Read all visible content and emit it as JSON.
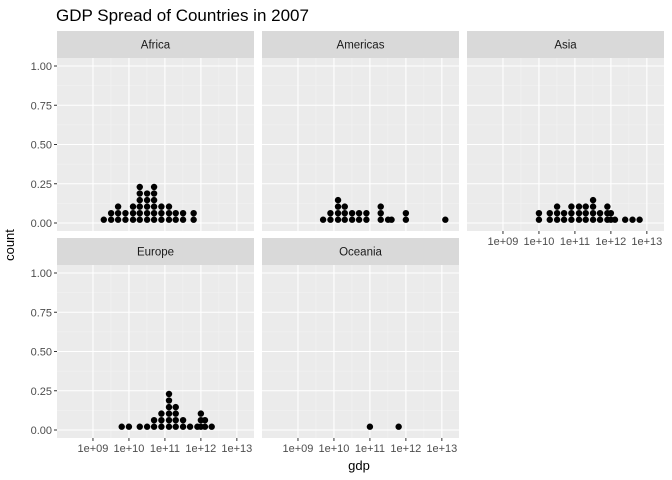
{
  "chart_data": {
    "type": "dotplot",
    "title": "GDP Spread of Countries in 2007",
    "xlabel": "gdp",
    "ylabel": "count",
    "x_scale": "log10",
    "xlim": [
      100000000,
      30000000000000
    ],
    "ylim": [
      0,
      1.0
    ],
    "y_ticks": [
      "0.00",
      "0.25",
      "0.50",
      "0.75",
      "1.00"
    ],
    "y_tick_values": [
      0,
      0.25,
      0.5,
      0.75,
      1.0
    ],
    "x_ticks": [
      "1e+09",
      "1e+10",
      "1e+11",
      "1e+12",
      "1e+13"
    ],
    "x_tick_values": [
      1000000000,
      10000000000,
      100000000000,
      1000000000000,
      10000000000000
    ],
    "binwidth_log10": 0.2,
    "grid": true,
    "dot_color": "#000000",
    "panel_background": "#ebebeb",
    "strip_background": "#d9d9d9",
    "facets": [
      {
        "name": "Africa",
        "bins": [
          {
            "x": 2000000000,
            "count": 1
          },
          {
            "x": 3200000000,
            "count": 2
          },
          {
            "x": 5000000000,
            "count": 3
          },
          {
            "x": 8000000000,
            "count": 2
          },
          {
            "x": 13000000000,
            "count": 3
          },
          {
            "x": 20000000000,
            "count": 6
          },
          {
            "x": 32000000000,
            "count": 5
          },
          {
            "x": 50000000000,
            "count": 6
          },
          {
            "x": 80000000000,
            "count": 3
          },
          {
            "x": 130000000000,
            "count": 3
          },
          {
            "x": 200000000000,
            "count": 2
          },
          {
            "x": 320000000000,
            "count": 2
          },
          {
            "x": 630000000000,
            "count": 2
          }
        ]
      },
      {
        "name": "Americas",
        "bins": [
          {
            "x": 5000000000,
            "count": 1
          },
          {
            "x": 8000000000,
            "count": 2
          },
          {
            "x": 13000000000,
            "count": 4
          },
          {
            "x": 20000000000,
            "count": 3
          },
          {
            "x": 32000000000,
            "count": 2
          },
          {
            "x": 50000000000,
            "count": 2
          },
          {
            "x": 80000000000,
            "count": 2
          },
          {
            "x": 200000000000,
            "count": 3
          },
          {
            "x": 320000000000,
            "count": 1
          },
          {
            "x": 400000000000,
            "count": 1
          },
          {
            "x": 1000000000000,
            "count": 2
          },
          {
            "x": 12500000000000,
            "count": 1
          }
        ]
      },
      {
        "name": "Asia",
        "bins": [
          {
            "x": 10000000000,
            "count": 2
          },
          {
            "x": 20000000000,
            "count": 2
          },
          {
            "x": 32000000000,
            "count": 3
          },
          {
            "x": 50000000000,
            "count": 2
          },
          {
            "x": 80000000000,
            "count": 3
          },
          {
            "x": 130000000000,
            "count": 3
          },
          {
            "x": 200000000000,
            "count": 3
          },
          {
            "x": 320000000000,
            "count": 4
          },
          {
            "x": 500000000000,
            "count": 2
          },
          {
            "x": 800000000000,
            "count": 3
          },
          {
            "x": 1000000000000,
            "count": 2
          },
          {
            "x": 1300000000000,
            "count": 1
          },
          {
            "x": 2500000000000,
            "count": 1
          },
          {
            "x": 4000000000000,
            "count": 1
          },
          {
            "x": 6300000000000,
            "count": 1
          }
        ]
      },
      {
        "name": "Europe",
        "bins": [
          {
            "x": 6300000000,
            "count": 1
          },
          {
            "x": 10000000000,
            "count": 1
          },
          {
            "x": 20000000000,
            "count": 1
          },
          {
            "x": 32000000000,
            "count": 1
          },
          {
            "x": 50000000000,
            "count": 2
          },
          {
            "x": 80000000000,
            "count": 3
          },
          {
            "x": 130000000000,
            "count": 6
          },
          {
            "x": 200000000000,
            "count": 4
          },
          {
            "x": 320000000000,
            "count": 2
          },
          {
            "x": 500000000000,
            "count": 1
          },
          {
            "x": 800000000000,
            "count": 1
          },
          {
            "x": 1000000000000,
            "count": 3
          },
          {
            "x": 1300000000000,
            "count": 2
          },
          {
            "x": 2000000000000,
            "count": 1
          }
        ]
      },
      {
        "name": "Oceania",
        "bins": [
          {
            "x": 100000000000,
            "count": 1
          },
          {
            "x": 630000000000,
            "count": 1
          }
        ]
      }
    ]
  }
}
